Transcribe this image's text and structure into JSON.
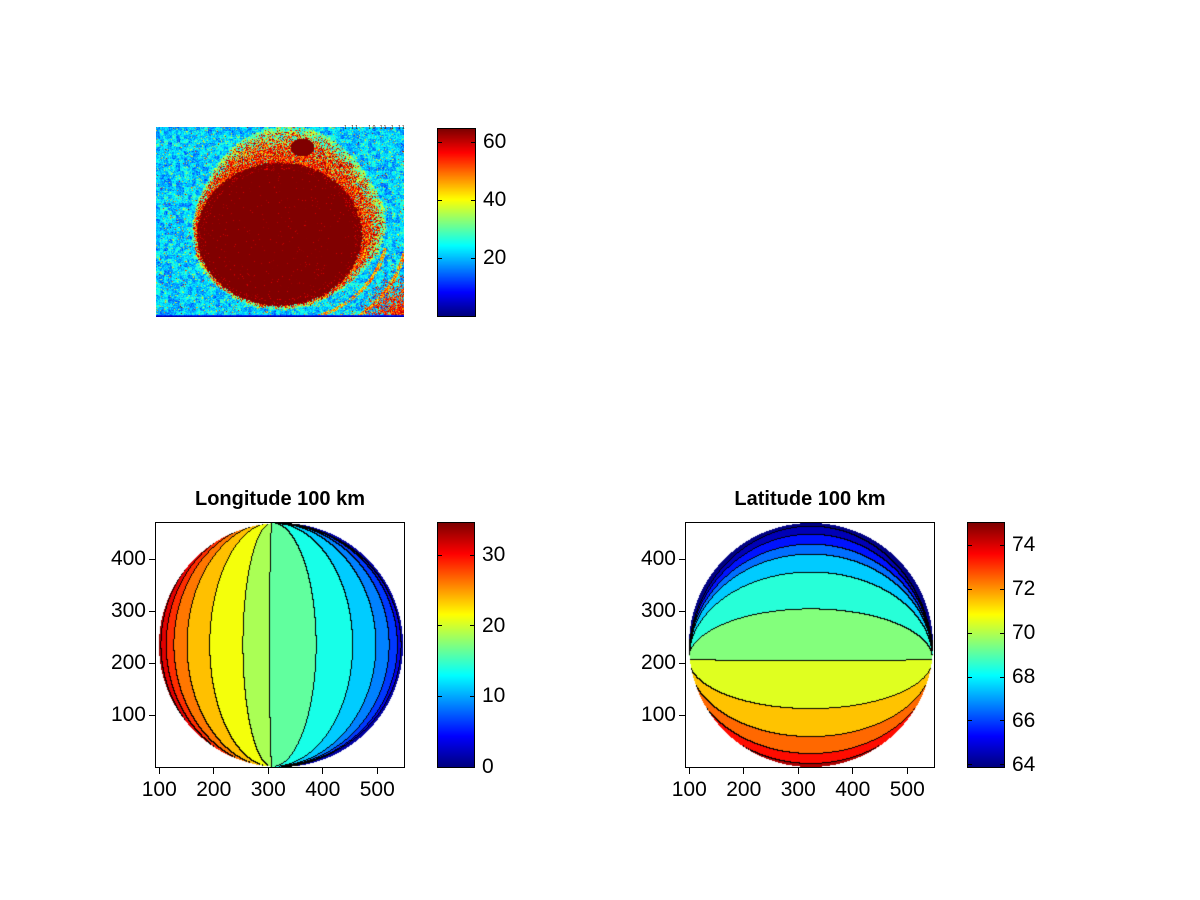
{
  "figure": {
    "background": "#ffffff",
    "colormap": "jet"
  },
  "chart_data": [
    {
      "id": "ir_image",
      "type": "heatmap",
      "description": "noisy infrared image of planetary disk, jet colormap",
      "clim": [
        0,
        64.5
      ],
      "colorbar": {
        "ticks": [
          20,
          40,
          60
        ],
        "range": [
          0,
          64.5
        ]
      },
      "annotation": "1 11 - 10 11 1 11",
      "background_mean": 21,
      "disk": {
        "cx": 123,
        "cy": 107,
        "rx": 82.5,
        "ry": 71.5,
        "value": 64.5
      },
      "blob": {
        "cx": 146,
        "cy": 20,
        "rx": 12,
        "ry": 9
      }
    },
    {
      "id": "longitude",
      "type": "contourf",
      "title": "Longitude 100 km",
      "x_ticks": [
        100,
        200,
        300,
        400,
        500
      ],
      "y_ticks": [
        100,
        200,
        300,
        400
      ],
      "x_range": [
        94,
        549
      ],
      "y_range": [
        0,
        470
      ],
      "value_range": [
        0,
        34.6
      ],
      "limb_values": [
        34.6,
        0
      ],
      "contours": {
        "levels": [
          32.5,
          30,
          27.5,
          25,
          22.5,
          20,
          17.5,
          15,
          12.5,
          10,
          7.5,
          5,
          2.5
        ],
        "s": [
          -0.98,
          -0.937,
          -0.874,
          -0.766,
          -0.58,
          -0.308,
          -0.09,
          0.292,
          0.591,
          0.782,
          0.89,
          0.958,
          0.988
        ]
      },
      "orientation": "vertical",
      "pinch": -0.07,
      "colorbar": {
        "ticks": [
          0,
          10,
          20,
          30
        ],
        "range": [
          0,
          34.6
        ]
      }
    },
    {
      "id": "latitude",
      "type": "contourf",
      "title": "Latitude 100 km",
      "x_ticks": [
        100,
        200,
        300,
        400,
        500
      ],
      "y_ticks": [
        100,
        200,
        300,
        400
      ],
      "x_range": [
        94,
        549
      ],
      "y_range": [
        0,
        470
      ],
      "value_range": [
        63.9,
        75.02
      ],
      "limb_values": [
        63.9,
        75.02
      ],
      "contours": {
        "levels": [
          64,
          65,
          66,
          67,
          68,
          69,
          70,
          71,
          72,
          73,
          74
        ],
        "s": [
          -0.97,
          -0.904,
          -0.823,
          -0.741,
          -0.594,
          -0.292,
          0.133,
          0.525,
          0.754,
          0.893,
          0.975
        ]
      },
      "orientation": "horizontal",
      "pinch": 0.117,
      "colorbar": {
        "ticks": [
          64,
          66,
          68,
          70,
          72,
          74
        ],
        "range": [
          63.9,
          75.02
        ]
      }
    }
  ]
}
